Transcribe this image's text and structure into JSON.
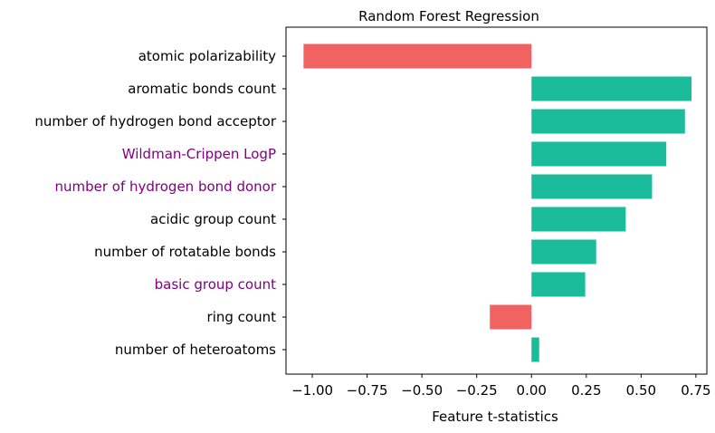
{
  "chart_data": {
    "type": "bar",
    "orientation": "horizontal",
    "title": "Random Forest Regression",
    "xlabel": "Feature t-statistics",
    "ylabel": "",
    "xlim": [
      -1.12,
      0.8
    ],
    "xticks": [
      -1.0,
      -0.75,
      -0.5,
      -0.25,
      0.0,
      0.25,
      0.5,
      0.75
    ],
    "xtick_labels": [
      "−1.00",
      "−0.75",
      "−0.50",
      "−0.25",
      "0.00",
      "0.25",
      "0.50",
      "0.75"
    ],
    "categories": [
      "atomic polarizability",
      "aromatic bonds count",
      "number of hydrogen bond acceptor",
      "Wildman-Crippen LogP",
      "number of hydrogen bond donor",
      "acidic group count",
      "number of rotatable bonds",
      "basic group count",
      "ring count",
      "number of heteroatoms"
    ],
    "values": [
      -1.04,
      0.73,
      0.7,
      0.615,
      0.55,
      0.43,
      0.295,
      0.245,
      -0.19,
      0.035
    ],
    "label_colors": [
      "#000000",
      "#000000",
      "#000000",
      "#800080",
      "#800080",
      "#000000",
      "#000000",
      "#800080",
      "#000000",
      "#000000"
    ],
    "positive_color": "#1abc9c",
    "negative_color": "#f16262",
    "grid": false
  }
}
